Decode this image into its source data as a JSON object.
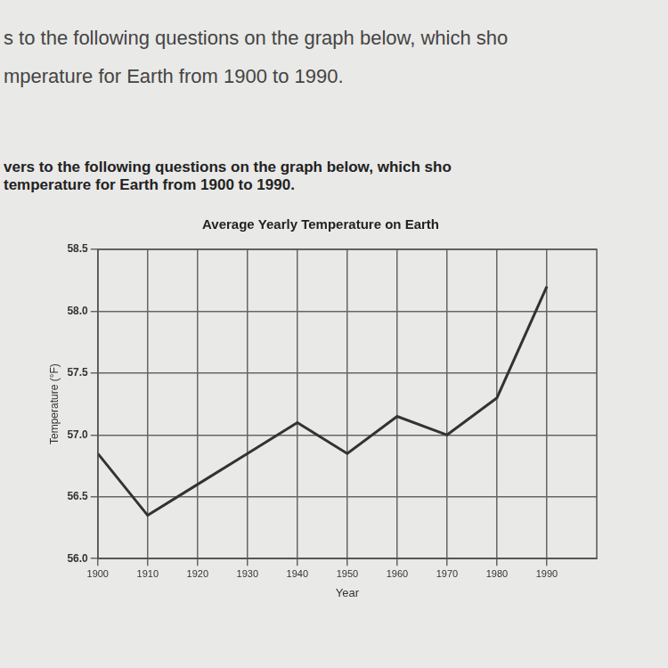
{
  "page_text": [
    "s to the following questions on the graph below, which sho",
    "mperature for Earth from 1900 to 1990.",
    "vers to the following questions on the graph below, which sho",
    "temperature for Earth from 1900 to 1990."
  ],
  "chart_data": {
    "type": "line",
    "title": "Average Yearly Temperature on Earth",
    "x_label": "Year",
    "y_label": "Temperature (°F)",
    "x": [
      1900,
      1910,
      1920,
      1930,
      1940,
      1950,
      1960,
      1970,
      1980,
      1990
    ],
    "values": [
      56.85,
      56.35,
      56.6,
      56.85,
      57.1,
      56.85,
      57.15,
      57.0,
      57.3,
      58.2
    ],
    "color": "#333333",
    "xlim": [
      1900,
      2000
    ],
    "xticks": [
      1900,
      1910,
      1920,
      1930,
      1940,
      1950,
      1960,
      1970,
      1980,
      1990
    ],
    "ylim": [
      56.0,
      58.5
    ],
    "yticks": [
      {
        "value": 56,
        "label": "56.0"
      },
      56.5,
      {
        "value": 57,
        "label": "57.0"
      },
      57.5,
      {
        "value": 58,
        "label": "58.0"
      },
      58.5
    ],
    "grid": true
  }
}
